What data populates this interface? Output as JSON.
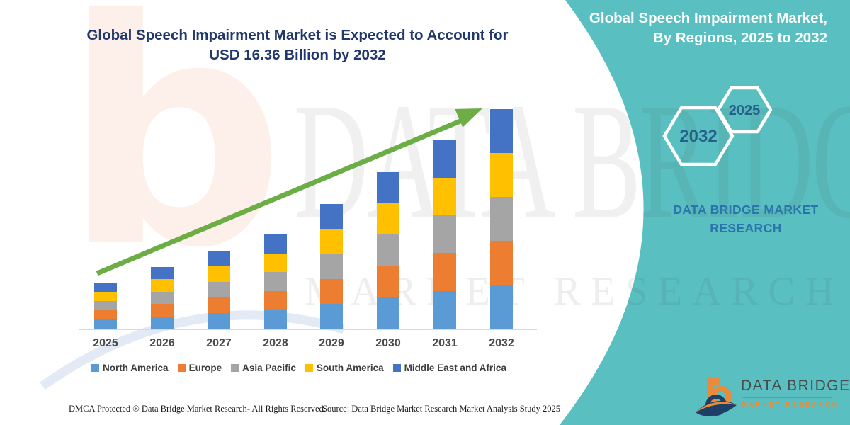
{
  "header": {
    "chart_title_line1": "Global Speech Impairment Market is Expected to Account for",
    "chart_title_line2": "USD 16.36 Billion by 2032",
    "panel_title_line1": "Global Speech Impairment Market,",
    "panel_title_line2": "By Regions, 2025 to 2032"
  },
  "chart_data": {
    "type": "bar",
    "stacked": true,
    "title": "Global Speech Impairment Market is Expected to Account for USD 16.36 Billion by 2032",
    "unit": "USD Billion",
    "categories": [
      "2025",
      "2026",
      "2027",
      "2028",
      "2029",
      "2030",
      "2031",
      "2032"
    ],
    "series": [
      {
        "name": "North America",
        "color": "#5B9BD5",
        "values": [
          0.69,
          0.92,
          1.16,
          1.4,
          1.86,
          2.33,
          2.82,
          3.27
        ]
      },
      {
        "name": "Europe",
        "color": "#ED7D31",
        "values": [
          0.69,
          0.92,
          1.16,
          1.4,
          1.86,
          2.33,
          2.82,
          3.27
        ]
      },
      {
        "name": "Asia Pacific",
        "color": "#A5A5A5",
        "values": [
          0.69,
          0.92,
          1.16,
          1.41,
          1.86,
          2.33,
          2.82,
          3.27
        ]
      },
      {
        "name": "South America",
        "color": "#FFC000",
        "values": [
          0.68,
          0.92,
          1.16,
          1.41,
          1.86,
          2.33,
          2.81,
          3.27
        ]
      },
      {
        "name": "Middle East and Africa",
        "color": "#4472C4",
        "values": [
          0.68,
          0.91,
          1.16,
          1.4,
          1.85,
          2.34,
          2.82,
          3.28
        ]
      }
    ],
    "totals": [
      3.43,
      4.59,
      5.8,
      7.02,
      9.29,
      11.66,
      14.09,
      16.36
    ],
    "final_value_label": "USD 16.36 Billion by 2032",
    "ylim": [
      0,
      16.36
    ],
    "gridlines": false,
    "legend_position": "bottom",
    "annotations": [
      "green upward trend arrow from 2025 to 2032"
    ]
  },
  "panel": {
    "hexagon_back_label": "2032",
    "hexagon_front_label": "2025",
    "brand_line1": "DATA BRIDGE MARKET",
    "brand_line2": "RESEARCH"
  },
  "logo": {
    "name_line": "DATA BRIDGE",
    "sub_line": "MARKET RESEARCH"
  },
  "watermark": {
    "line1": "DATA BRIDGE",
    "line2": "MARKET RESEARCH",
    "letter": "b"
  },
  "footer": {
    "dmca": "DMCA Protected ® Data Bridge Market Research-  All Rights Reserved.",
    "source": "Source: Data Bridge Market Research  Market Analysis Study 2025"
  },
  "colors": {
    "teal_panel": "#59BFC1",
    "title_navy": "#21386B",
    "arrow_green": "#6CAD45",
    "axis_gray": "#D9D9D9",
    "brand_blue": "#2B74AD",
    "hex_number_blue": "#26608D",
    "logo_orange": "#E98A3D",
    "logo_navy": "#1E3F66"
  }
}
